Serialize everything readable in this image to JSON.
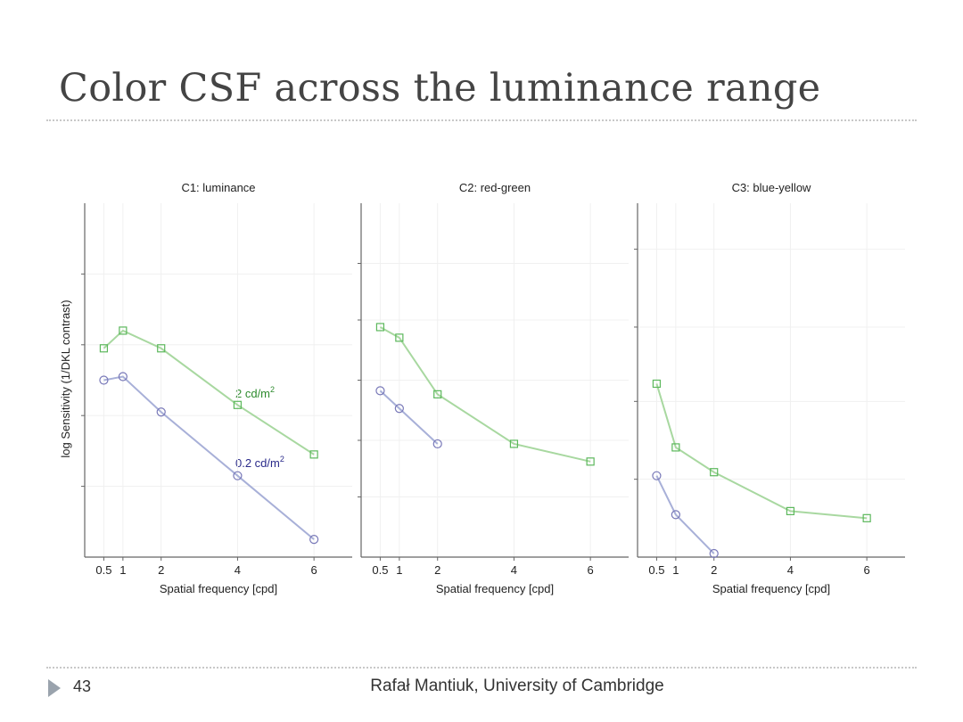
{
  "slide": {
    "title": "Color CSF across the luminance range",
    "page_number": "43",
    "author": "Rafał Mantiuk, University of Cambridge"
  },
  "colors": {
    "series_2": "#2e8b2e",
    "series_02": "#2a2a8a",
    "line_2": "#a8d8a0",
    "line_02": "#a8b0d8",
    "marker_2": "#5cb85c",
    "marker_02": "#7878b8",
    "axis": "#666666",
    "grid": "#f0f0f0"
  },
  "chart_data": [
    {
      "type": "line",
      "title": "C1: luminance",
      "xlabel": "Spatial frequency [cpd]",
      "ylabel": "log Sensitivity (1/DKL contrast)",
      "x_ticks": [
        0.5,
        1,
        2,
        4,
        6
      ],
      "x_tick_labels": [
        "0.5",
        "1",
        "2",
        "4",
        "6"
      ],
      "xlim": [
        0,
        7
      ],
      "ylim": [
        0,
        1
      ],
      "y_grid": [
        0.2,
        0.4,
        0.6,
        0.8
      ],
      "series": [
        {
          "name": "2 cd/m",
          "name_sup": "2",
          "marker": "square",
          "x": [
            0.5,
            1,
            2,
            4,
            6
          ],
          "y": [
            0.59,
            0.64,
            0.59,
            0.43,
            0.29
          ]
        },
        {
          "name": "0.2 cd/m",
          "name_sup": "2",
          "marker": "circle",
          "x": [
            0.5,
            1,
            2,
            4,
            6
          ],
          "y": [
            0.5,
            0.51,
            0.41,
            0.23,
            0.05
          ]
        }
      ]
    },
    {
      "type": "line",
      "title": "C2: red-green",
      "xlabel": "Spatial frequency [cpd]",
      "x_ticks": [
        0.5,
        1,
        2,
        4,
        6
      ],
      "x_tick_labels": [
        "0.5",
        "1",
        "2",
        "4",
        "6"
      ],
      "xlim": [
        0,
        7
      ],
      "ylim": [
        0,
        1
      ],
      "y_grid": [
        0.17,
        0.33,
        0.5,
        0.67,
        0.83
      ],
      "series": [
        {
          "name": "2 cd/m2",
          "marker": "square",
          "x": [
            0.5,
            1,
            2,
            4,
            6
          ],
          "y": [
            0.65,
            0.62,
            0.46,
            0.32,
            0.27
          ]
        },
        {
          "name": "0.2 cd/m2",
          "marker": "circle",
          "x": [
            0.5,
            1,
            2
          ],
          "y": [
            0.47,
            0.42,
            0.32
          ]
        }
      ]
    },
    {
      "type": "line",
      "title": "C3: blue-yellow",
      "xlabel": "Spatial frequency [cpd]",
      "x_ticks": [
        0.5,
        1,
        2,
        4,
        6
      ],
      "x_tick_labels": [
        "0.5",
        "1",
        "2",
        "4",
        "6"
      ],
      "xlim": [
        0,
        7
      ],
      "ylim": [
        0,
        1
      ],
      "y_grid": [
        0.22,
        0.44,
        0.65,
        0.87
      ],
      "series": [
        {
          "name": "2 cd/m2",
          "marker": "square",
          "x": [
            0.5,
            1,
            2,
            4,
            6
          ],
          "y": [
            0.49,
            0.31,
            0.24,
            0.13,
            0.11
          ]
        },
        {
          "name": "0.2 cd/m2",
          "marker": "circle",
          "x": [
            0.5,
            1,
            2
          ],
          "y": [
            0.23,
            0.12,
            0.01
          ]
        }
      ]
    }
  ]
}
